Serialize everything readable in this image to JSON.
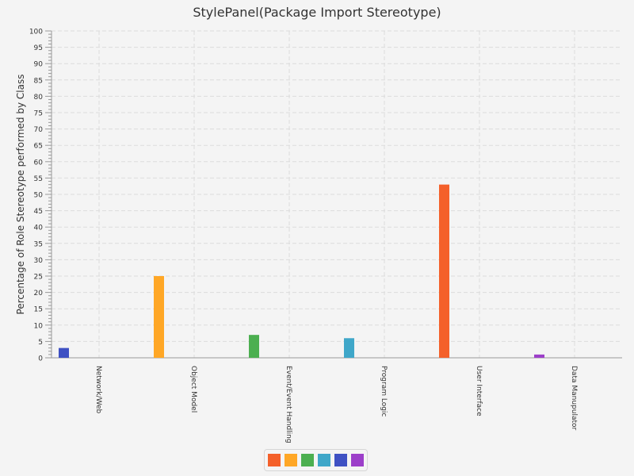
{
  "chart_data": {
    "type": "bar",
    "title": "StylePanel(Package Import Stereotype)",
    "xlabel": "",
    "ylabel": "Percentage of Role Stereotype performed by Class",
    "ylim": [
      0,
      100
    ],
    "ytick_step": 5,
    "grid": true,
    "legend_position": "bottom",
    "categories": [
      "Network/Web",
      "Object Model",
      "Event/Event Handling",
      "Program Logic",
      "User Interface",
      "Data Manupulator"
    ],
    "values": [
      3,
      25,
      7,
      6,
      53,
      1
    ],
    "colors": [
      "#3f51c3",
      "#ffa726",
      "#4caf50",
      "#3fa7c9",
      "#f4602a",
      "#9c3fc9"
    ]
  },
  "legend": {
    "swatches": [
      "#f4602a",
      "#ffa726",
      "#4caf50",
      "#3fa7c9",
      "#3f51c3",
      "#9c3fc9"
    ]
  }
}
